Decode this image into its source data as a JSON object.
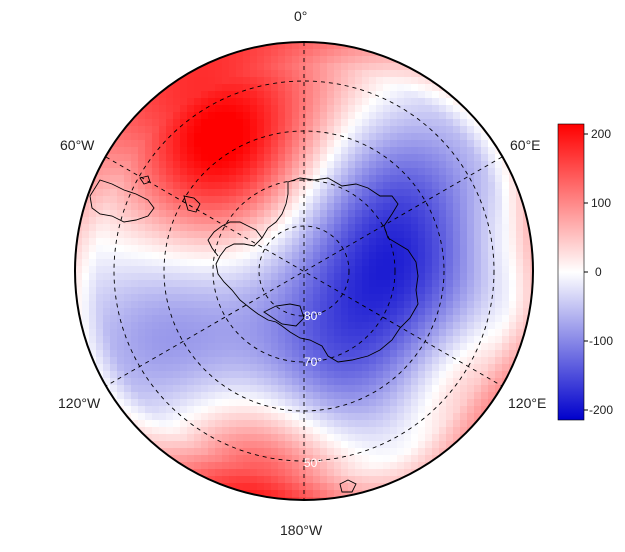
{
  "map": {
    "projection": "south-polar-stereographic",
    "longitude_labels": {
      "top": "0°",
      "upper_left": "60°W",
      "upper_right": "60°E",
      "lower_left": "120°W",
      "lower_right": "120°E",
      "bottom": "180°W"
    },
    "latitude_labels": [
      "80°",
      "70°",
      "50°"
    ],
    "colorbar": {
      "ticks": [
        "200",
        "100",
        "0",
        "-100",
        "-200"
      ],
      "range": [
        -215,
        215
      ],
      "colors": {
        "low": "#0000cc",
        "mid": "#ffffff",
        "high": "#ff0000"
      }
    }
  }
}
